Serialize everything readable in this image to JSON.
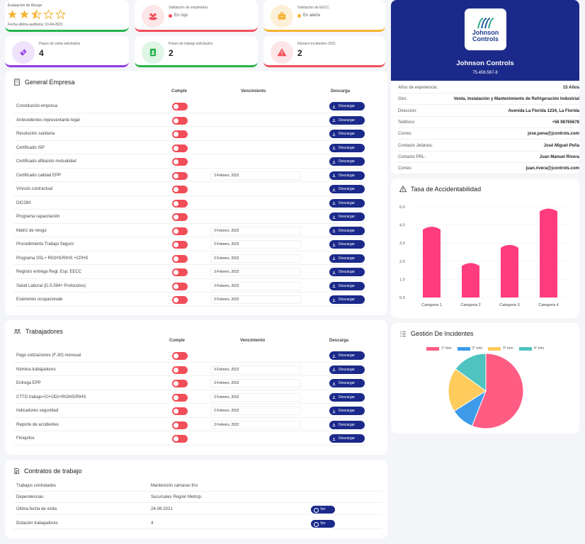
{
  "kpis": {
    "riesgo": {
      "title": "Evaluación de Riesgo",
      "rating": "2.5/5",
      "sub": "Fecha última auditoría: 10-04-2021"
    },
    "empleados": {
      "title": "Validación de empleados",
      "status": "En rojo"
    },
    "eecc": {
      "title": "Validación de EECC",
      "status": "En alerta"
    },
    "visita": {
      "title": "Pases de visita solicitados",
      "value": "4"
    },
    "trabajo": {
      "title": "Pases de trabajo solicitados",
      "value": "2"
    },
    "incidentes": {
      "title": "Número incidentes 2021",
      "value": "2"
    }
  },
  "colors": {
    "red": "#f04f5a",
    "navy": "#1b2a8a",
    "pink": "#ff3c7e",
    "yellow": "#f5b333"
  },
  "headers": {
    "cumple": "Cumple",
    "vencimiento": "Vencimiento",
    "descarga": "Descarga",
    "download_label": "Descargar"
  },
  "general": {
    "title": "General Empresa",
    "rows": [
      {
        "label": "Constitución empresa",
        "date": ""
      },
      {
        "label": "Antecedentes representante legal",
        "date": ""
      },
      {
        "label": "Resolución sanitaria",
        "date": ""
      },
      {
        "label": "Certificado ISP",
        "date": ""
      },
      {
        "label": "Certificado afiliación mutualidad",
        "date": ""
      },
      {
        "label": "Certificado calidad EPP",
        "date": "3 Febrero, 2022"
      },
      {
        "label": "Vínculo contractual",
        "date": ""
      },
      {
        "label": "DICOM",
        "date": ""
      },
      {
        "label": "Programa capacitación",
        "date": ""
      },
      {
        "label": "Matriz de riesgo",
        "date": "3 Febrero, 2022"
      },
      {
        "label": "Procedimiento Trabajo Seguro",
        "date": "3 Febrero, 2022"
      },
      {
        "label": "Programa SSL+ RIOHS/RIHS +CPHS",
        "date": "3 Febrero, 2022"
      },
      {
        "label": "Registro entrega Regl. Esp. EECC",
        "date": "3 Febrero, 2022"
      },
      {
        "label": "Salud Laboral (D.S.594+ Protocolos)",
        "date": "3 Febrero, 2022"
      },
      {
        "label": "Exámenes ocupacionale",
        "date": "3 Febrero, 2022"
      }
    ]
  },
  "trabajadores": {
    "title": "Trabajadores",
    "rows": [
      {
        "label": "Pago cotizaciones (F-30) mensual",
        "date": ""
      },
      {
        "label": "Nómina trabajadores",
        "date": "3 Febrero, 2022"
      },
      {
        "label": "Entrega EPP",
        "date": "3 Febrero, 2022"
      },
      {
        "label": "CTTO trabajo+CI+ODI+RIOHS/RIHS",
        "date": "3 Febrero, 2022"
      },
      {
        "label": "Indicadores seguridad",
        "date": "3 Febrero, 2022"
      },
      {
        "label": "Reporte de accidentes",
        "date": "3 Febrero, 2022"
      },
      {
        "label": "Finiquitos",
        "date": ""
      }
    ]
  },
  "contratos": {
    "title": "Contratos de trabajo",
    "ver_label": "Ver",
    "rows": [
      {
        "label": "Trabajos contratados",
        "value": "Mantención cámaras frío"
      },
      {
        "label": "Dependencias",
        "value": "Sucursales Region Metrop."
      },
      {
        "label": "Última fecha de visita",
        "value": "24-08-2021"
      },
      {
        "label": "Dotación trabajadores",
        "value": "4"
      }
    ]
  },
  "company": {
    "logo_line1": "Johnson",
    "logo_line2": "Controls",
    "name": "Johnson Controls",
    "rut": "75.456.567-8",
    "info": [
      {
        "label": "Años de experiencia:",
        "value": "15 Años"
      },
      {
        "label": "Giro:",
        "value": "Venta, Instalación y Mantenimiento de Refrigeración Industrial"
      },
      {
        "label": "Dirección:",
        "value": "Avenida La Florida 1234, La Florida"
      },
      {
        "label": "Teléfono:",
        "value": "+56 98765678"
      },
      {
        "label": "Correo:",
        "value": "jose.pena@jcontrols.com"
      },
      {
        "label": "Contacto Jefatura:",
        "value": "José Miguel Peña"
      },
      {
        "label": "Contacto PRL:",
        "value": "Juan Manuel Rivera"
      },
      {
        "label": "Correo:",
        "value": "juan.rivera@jcontrols.com"
      }
    ]
  },
  "chart_data": [
    {
      "type": "bar",
      "title": "Tasa de Accidentabilidad",
      "categories": [
        "Categoria 1",
        "Categoria 2",
        "Categoria 3",
        "Categoria 4"
      ],
      "values": [
        3.9,
        1.9,
        2.9,
        4.9
      ],
      "ylim": [
        0,
        5
      ],
      "yticks": [
        "0.0",
        "1.0",
        "2.0",
        "3.0",
        "4.0",
        "5.0"
      ],
      "color": "#ff3c7e"
    },
    {
      "type": "pie",
      "title": "Gestión De Incidentes",
      "labels": [
        "1° trim",
        "2° trim",
        "3° trim",
        "4° trim"
      ],
      "values": [
        56,
        10,
        19,
        15
      ],
      "colors": [
        "#ff5c84",
        "#3d9bea",
        "#ffcb5c",
        "#4fc3bf"
      ]
    }
  ]
}
